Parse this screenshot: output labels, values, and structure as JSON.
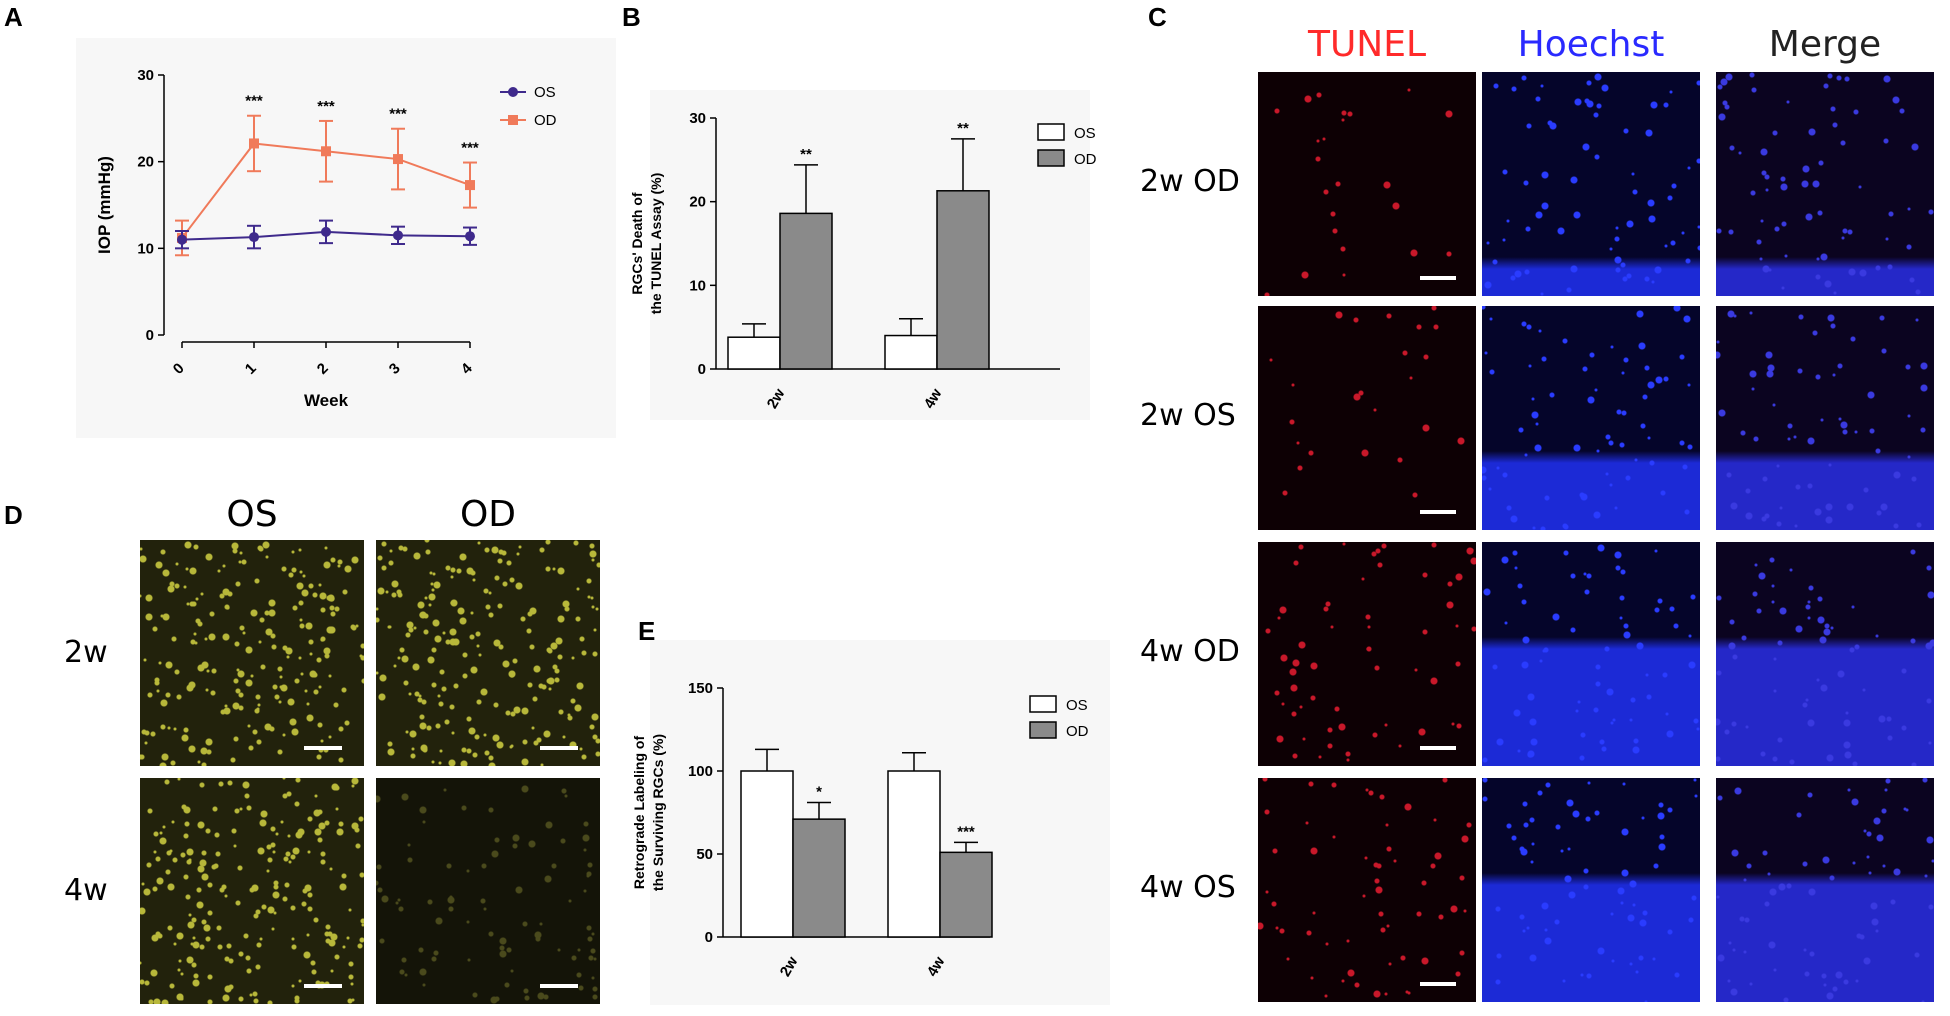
{
  "panels": {
    "A": "A",
    "B": "B",
    "C": "C",
    "D": "D",
    "E": "E"
  },
  "chart_data": [
    {
      "id": "A",
      "type": "line",
      "xlabel": "Week",
      "ylabel": "IOP (mmHg)",
      "x": [
        0,
        1,
        2,
        3,
        4
      ],
      "ylim": [
        0,
        30
      ],
      "yticks": [
        0,
        10,
        20,
        30
      ],
      "series": [
        {
          "name": "OS",
          "color": "#3f2a8c",
          "values": [
            11.0,
            11.3,
            11.9,
            11.5,
            11.4
          ],
          "errors": [
            1.0,
            1.3,
            1.3,
            1.0,
            1.0
          ]
        },
        {
          "name": "OD",
          "color": "#f07a5a",
          "values": [
            11.2,
            22.1,
            21.2,
            20.3,
            17.3
          ],
          "errors": [
            2.0,
            3.2,
            3.5,
            3.5,
            2.6
          ]
        }
      ],
      "annotations": [
        {
          "x": 1,
          "text": "***"
        },
        {
          "x": 2,
          "text": "***"
        },
        {
          "x": 3,
          "text": "***"
        },
        {
          "x": 4,
          "text": "***"
        }
      ]
    },
    {
      "id": "B",
      "type": "bar",
      "ylabel_lines": [
        "RGCs' Death of",
        "the TUNEL Assay (%)"
      ],
      "categories": [
        "2w",
        "4w"
      ],
      "ylim": [
        0,
        30
      ],
      "yticks": [
        0,
        10,
        20,
        30
      ],
      "series": [
        {
          "name": "OS",
          "color": "#ffffff",
          "values": [
            3.8,
            4.0
          ],
          "errors": [
            1.6,
            2.0
          ]
        },
        {
          "name": "OD",
          "color": "#8a8a8a",
          "values": [
            18.6,
            21.3
          ],
          "errors": [
            5.8,
            6.2
          ]
        }
      ],
      "annotations": [
        {
          "category": 0,
          "text": "**"
        },
        {
          "category": 1,
          "text": "**"
        }
      ]
    },
    {
      "id": "E",
      "type": "bar",
      "ylabel_lines": [
        "Retrograde Labeling of",
        "the Surviving RGCs (%)"
      ],
      "categories": [
        "2w",
        "4w"
      ],
      "ylim": [
        0,
        150
      ],
      "yticks": [
        0,
        50,
        100,
        150
      ],
      "series": [
        {
          "name": "OS",
          "color": "#ffffff",
          "values": [
            100,
            100
          ],
          "errors": [
            13,
            11
          ]
        },
        {
          "name": "OD",
          "color": "#8a8a8a",
          "values": [
            71,
            51
          ],
          "errors": [
            10,
            6
          ]
        }
      ],
      "annotations": [
        {
          "category": 0,
          "text": "*"
        },
        {
          "category": 1,
          "text": "***"
        }
      ]
    }
  ],
  "micrographs_C": {
    "columns": [
      {
        "label": "TUNEL",
        "color": "#ff2a2a"
      },
      {
        "label": "Hoechst",
        "color": "#2a2aff"
      },
      {
        "label": "Merge",
        "color": "#222222"
      }
    ],
    "rows": [
      "2w  OD",
      "2w  OS",
      "4w  OD",
      "4w  OS"
    ]
  },
  "micrographs_D": {
    "columns": [
      "OS",
      "OD"
    ],
    "rows": [
      "2w",
      "4w"
    ]
  }
}
